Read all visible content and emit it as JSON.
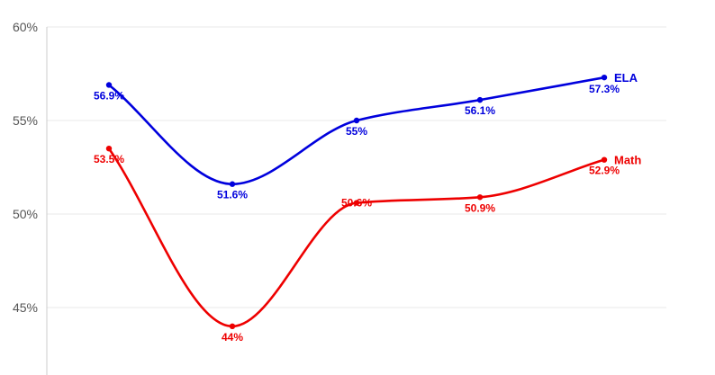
{
  "chart_data": {
    "type": "line",
    "x": [
      1,
      2,
      3,
      4,
      5
    ],
    "series": [
      {
        "name": "ELA",
        "color": "#0000dd",
        "values": [
          56.9,
          51.6,
          55.0,
          56.1,
          57.3
        ],
        "labels": [
          "56.9%",
          "51.6%",
          "55%",
          "56.1%",
          "57.3%"
        ]
      },
      {
        "name": "Math",
        "color": "#ee0000",
        "values": [
          53.5,
          44.0,
          50.6,
          50.9,
          52.9
        ],
        "labels": [
          "53.5%",
          "44%",
          "50.6%",
          "50.9%",
          "52.9%"
        ]
      }
    ],
    "yticks": [
      45,
      50,
      55,
      60
    ],
    "ytick_labels": [
      "45%",
      "50%",
      "55%",
      "60%"
    ],
    "ylim": [
      41.5,
      60
    ],
    "grid": true,
    "legend": "end-of-line labels",
    "title": "",
    "xlabel": "",
    "ylabel": ""
  }
}
